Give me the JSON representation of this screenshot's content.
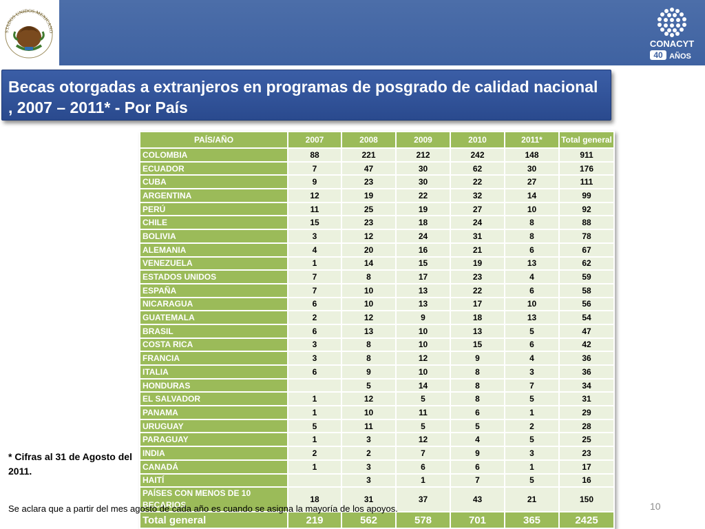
{
  "header": {
    "logo_left_icon": "mexican-coat-of-arms",
    "logo_left_caption": "ESTADOS UNIDOS MEXICANOS",
    "logo_right_icon": "conacyt-logo",
    "logo_right_name": "CONACYT",
    "logo_right_badge_number": "40",
    "logo_right_badge_text": "AÑOS"
  },
  "title": "Becas otorgadas a extranjeros en programas de posgrado de calidad nacional , 2007 – 2011* -  Por  País",
  "table": {
    "headers": [
      "PAÍS/AÑO",
      "2007",
      "2008",
      "2009",
      "2010",
      "2011*",
      "Total general"
    ],
    "rows": [
      [
        "COLOMBIA",
        "88",
        "221",
        "212",
        "242",
        "148",
        "911"
      ],
      [
        "ECUADOR",
        "7",
        "47",
        "30",
        "62",
        "30",
        "176"
      ],
      [
        "CUBA",
        "9",
        "23",
        "30",
        "22",
        "27",
        "111"
      ],
      [
        "ARGENTINA",
        "12",
        "19",
        "22",
        "32",
        "14",
        "99"
      ],
      [
        "PERÚ",
        "11",
        "25",
        "19",
        "27",
        "10",
        "92"
      ],
      [
        "CHILE",
        "15",
        "23",
        "18",
        "24",
        "8",
        "88"
      ],
      [
        "BOLIVIA",
        "3",
        "12",
        "24",
        "31",
        "8",
        "78"
      ],
      [
        "ALEMANIA",
        "4",
        "20",
        "16",
        "21",
        "6",
        "67"
      ],
      [
        "VENEZUELA",
        "1",
        "14",
        "15",
        "19",
        "13",
        "62"
      ],
      [
        "ESTADOS UNIDOS",
        "7",
        "8",
        "17",
        "23",
        "4",
        "59"
      ],
      [
        "ESPAÑA",
        "7",
        "10",
        "13",
        "22",
        "6",
        "58"
      ],
      [
        "NICARAGUA",
        "6",
        "10",
        "13",
        "17",
        "10",
        "56"
      ],
      [
        "GUATEMALA",
        "2",
        "12",
        "9",
        "18",
        "13",
        "54"
      ],
      [
        "BRASIL",
        "6",
        "13",
        "10",
        "13",
        "5",
        "47"
      ],
      [
        "COSTA RICA",
        "3",
        "8",
        "10",
        "15",
        "6",
        "42"
      ],
      [
        "FRANCIA",
        "3",
        "8",
        "12",
        "9",
        "4",
        "36"
      ],
      [
        "ITALIA",
        "6",
        "9",
        "10",
        "8",
        "3",
        "36"
      ],
      [
        "HONDURAS",
        "",
        "5",
        "14",
        "8",
        "7",
        "34"
      ],
      [
        "EL SALVADOR",
        "1",
        "12",
        "5",
        "8",
        "5",
        "31"
      ],
      [
        "PANAMA",
        "1",
        "10",
        "11",
        "6",
        "1",
        "29"
      ],
      [
        "URUGUAY",
        "5",
        "11",
        "5",
        "5",
        "2",
        "28"
      ],
      [
        "PARAGUAY",
        "1",
        "3",
        "12",
        "4",
        "5",
        "25"
      ],
      [
        "INDIA",
        "2",
        "2",
        "7",
        "9",
        "3",
        "23"
      ],
      [
        "CANADÁ",
        "1",
        "3",
        "6",
        "6",
        "1",
        "17"
      ],
      [
        "HAITÍ",
        "",
        "3",
        "1",
        "7",
        "5",
        "16"
      ],
      [
        "PAÍSES CON MENOS DE 10 BECARIOS",
        "18",
        "31",
        "37",
        "43",
        "21",
        "150"
      ]
    ],
    "total_row": [
      "Total general",
      "219",
      "562",
      "578",
      "701",
      "365",
      "2425"
    ]
  },
  "footnote": "* Cifras al 31 de Agosto del 2011.",
  "clarification": "Se aclara que a partir del  mes agosto de cada año es cuando se asigna la mayoría de los apoyos.",
  "page_number": "10",
  "colors": {
    "header_blue": "#4c6ea9",
    "title_blue": "#3b5ea6",
    "table_green": "#9bbb59",
    "table_cell": "#ebf1de"
  }
}
